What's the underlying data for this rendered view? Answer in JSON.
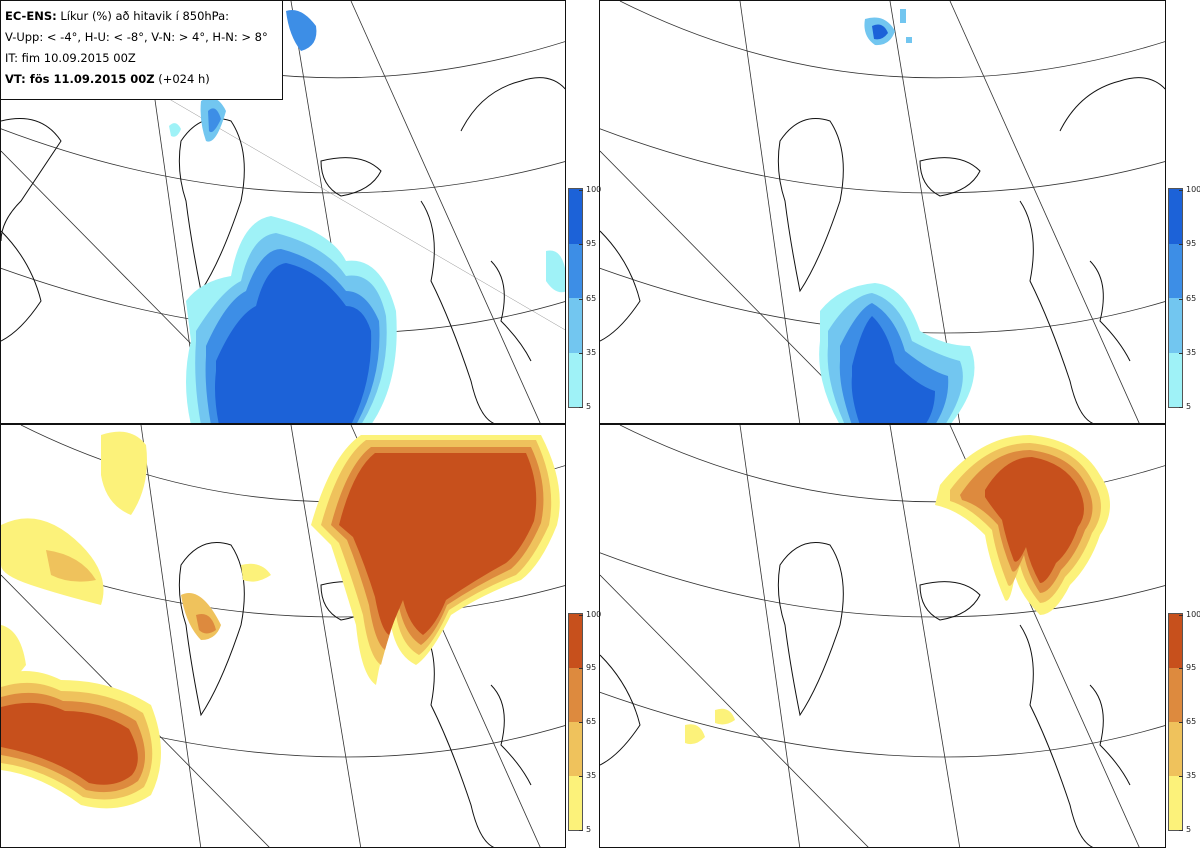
{
  "info": {
    "model_bold": "EC-ENS:",
    "model_rest": " Líkur (%) að hitavik í 850hPa:",
    "thresholds": "V-Upp: < -4°, H-U: < -8°, V-N: > 4°, H-N: > 8°",
    "it": "IT: fim 10.09.2015 00Z",
    "vt_bold": "VT: fös 11.09.2015 00Z",
    "vt_rest": " (+024 h)"
  },
  "colorbar_cold": {
    "ticks": [
      "100",
      "95",
      "65",
      "35",
      "5"
    ],
    "colors": [
      "#1c62d8",
      "#3d8ee6",
      "#72c6f0",
      "#9ff2f7"
    ]
  },
  "colorbar_warm": {
    "ticks": [
      "100",
      "95",
      "65",
      "35",
      "5"
    ],
    "colors": [
      "#c7501c",
      "#dd8a3e",
      "#efc25c",
      "#fcf27a"
    ]
  },
  "panels": [
    {
      "id": "top-left",
      "field": "cold",
      "threshold_label": "V-Upp"
    },
    {
      "id": "top-right",
      "field": "cold",
      "threshold_label": "H-U"
    },
    {
      "id": "bottom-left",
      "field": "warm",
      "threshold_label": "V-N"
    },
    {
      "id": "bottom-right",
      "field": "warm",
      "threshold_label": "H-N"
    }
  ]
}
